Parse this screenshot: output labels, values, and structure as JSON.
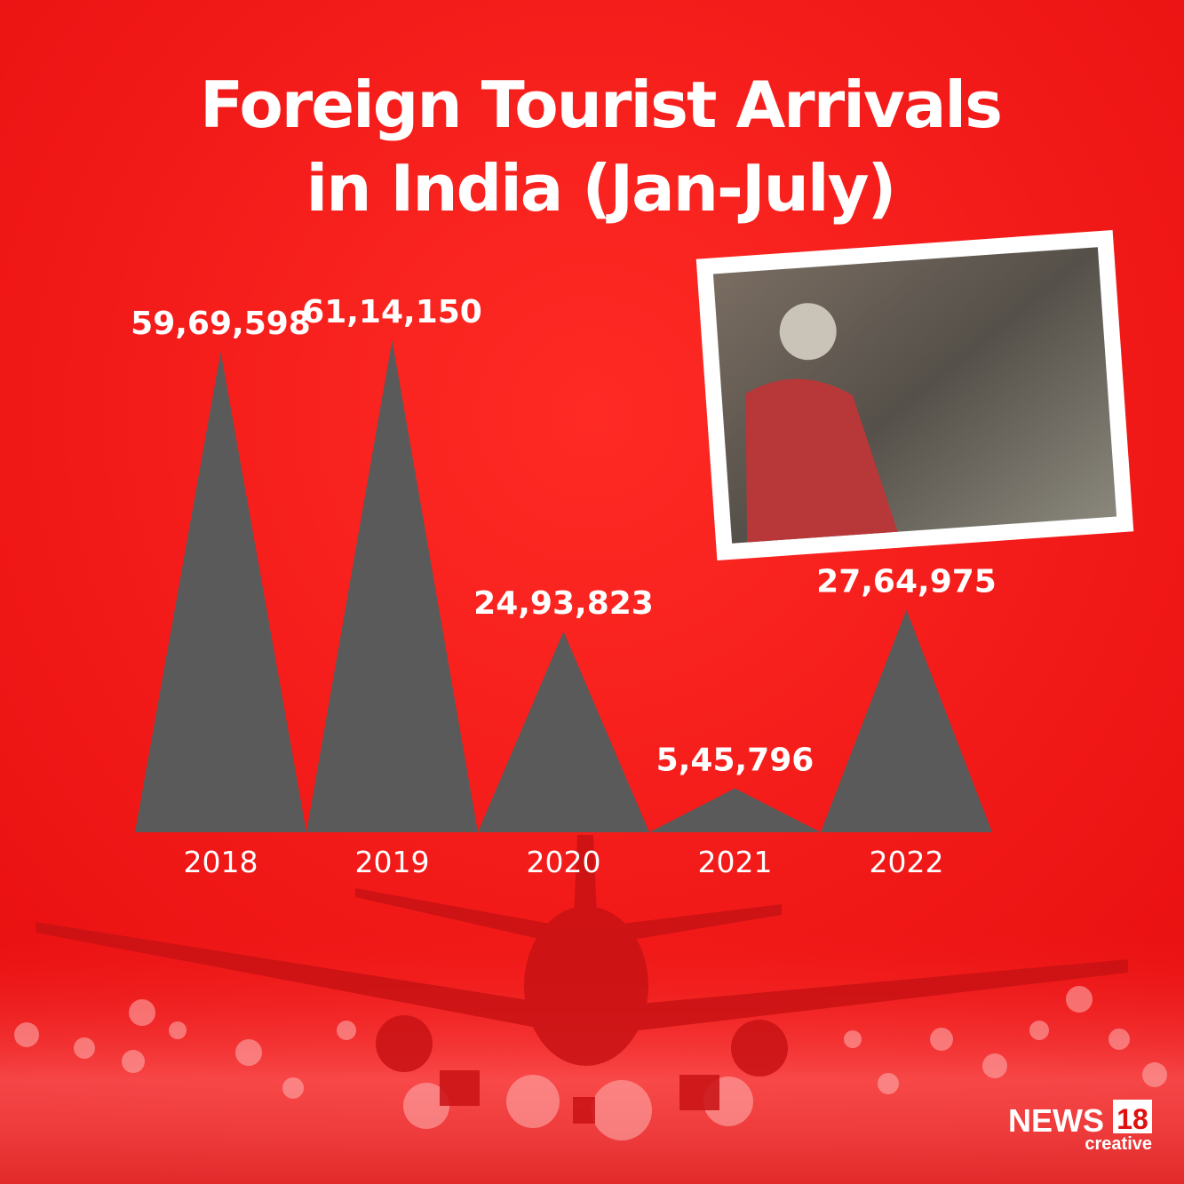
{
  "chart_data": {
    "type": "triangle",
    "title": "Foreign Tourist Arrivals in India (Jan-July)",
    "categories": [
      "2018",
      "2019",
      "2020",
      "2021",
      "2022"
    ],
    "values": [
      5969598,
      6114150,
      2493823,
      545796,
      2764975
    ],
    "value_labels": [
      "59,69,598",
      "61,14,150",
      "24,93,823",
      "5,45,796",
      "27,64,975"
    ],
    "color": "#5a5a5a"
  },
  "branding": {
    "name": "NEWS",
    "number": "18",
    "tagline": "creative"
  }
}
